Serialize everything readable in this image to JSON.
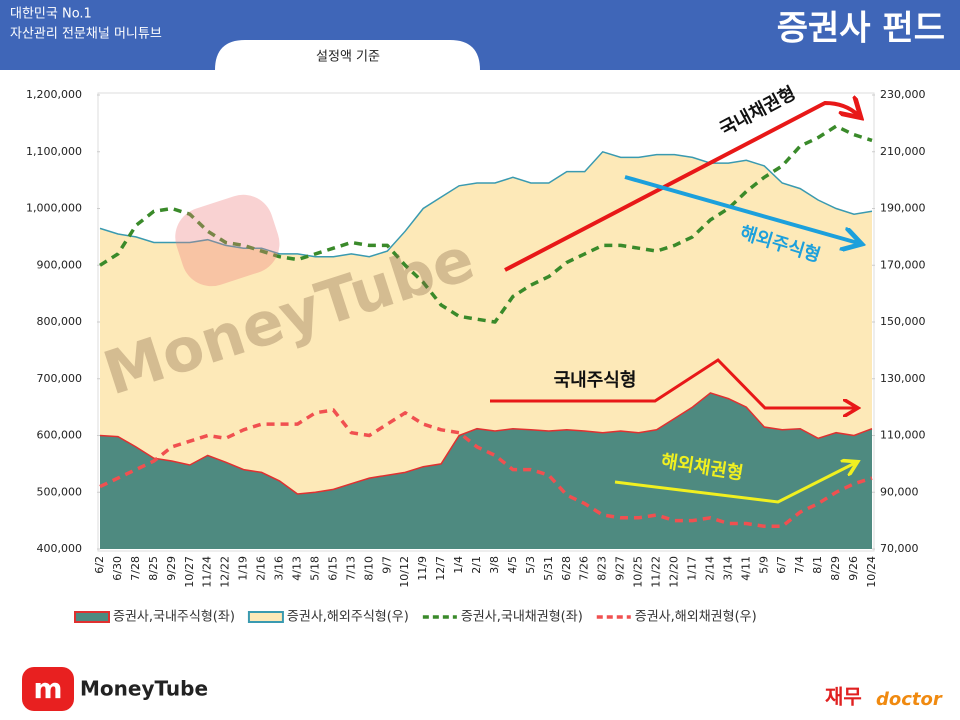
{
  "header": {
    "tagline1": "대한민국 No.1",
    "tagline2": "자산관리 전문채널 머니튜브",
    "title": "증권사 펀드",
    "subtitle": "설정액 기준"
  },
  "watermark": "MoneyTube",
  "logos": {
    "left": "MoneyTube",
    "right_1": "재무",
    "right_2": "doctor"
  },
  "chart_data": {
    "type": "combo",
    "categories": [
      "6/2",
      "6/30",
      "7/28",
      "8/25",
      "9/29",
      "10/27",
      "11/24",
      "12/22",
      "1/19",
      "2/16",
      "3/16",
      "4/13",
      "5/18",
      "6/15",
      "7/13",
      "8/10",
      "9/7",
      "10/12",
      "11/9",
      "12/7",
      "1/4",
      "2/1",
      "3/8",
      "4/5",
      "5/3",
      "5/31",
      "6/28",
      "7/26",
      "8/23",
      "9/27",
      "10/25",
      "11/22",
      "12/20",
      "1/17",
      "2/14",
      "3/14",
      "4/11",
      "5/9",
      "6/7",
      "7/4",
      "8/1",
      "8/29",
      "9/26",
      "10/24"
    ],
    "ylim": [
      400000,
      1200000
    ],
    "yticks": [
      {
        "value": 400000,
        "label": "400,000"
      },
      {
        "value": 500000,
        "label": "500,000"
      },
      {
        "value": 600000,
        "label": "600,000"
      },
      {
        "value": 700000,
        "label": "700,000"
      },
      {
        "value": 800000,
        "label": "800,000"
      },
      {
        "value": 900000,
        "label": "900,000"
      },
      {
        "value": 1000000,
        "label": "1,000,000"
      },
      {
        "value": 1100000,
        "label": "1,100,000"
      },
      {
        "value": 1200000,
        "label": "1,200,000"
      }
    ],
    "y2lim": [
      70000,
      230000
    ],
    "y2ticks": [
      {
        "value": 70000,
        "label": "70,000"
      },
      {
        "value": 90000,
        "label": "90,000"
      },
      {
        "value": 110000,
        "label": "110,000"
      },
      {
        "value": 130000,
        "label": "130,000"
      },
      {
        "value": 150000,
        "label": "150,000"
      },
      {
        "value": 170000,
        "label": "170,000"
      },
      {
        "value": 190000,
        "label": "190,000"
      },
      {
        "value": 210000,
        "label": "210,000"
      },
      {
        "value": 230000,
        "label": "230,000"
      }
    ],
    "grid": false,
    "series": [
      {
        "name": "증권사,국내주식형(좌)",
        "type": "area",
        "color": "#4e8a80",
        "edge": "#e03030",
        "values": [
          600000,
          598000,
          580000,
          560000,
          555000,
          548000,
          565000,
          553000,
          540000,
          535000,
          520000,
          497000,
          500000,
          505000,
          515000,
          525000,
          530000,
          535000,
          545000,
          550000,
          600000,
          612000,
          608000,
          612000,
          610000,
          608000,
          610000,
          608000,
          605000,
          608000,
          605000,
          610000,
          630000,
          650000,
          675000,
          665000,
          650000,
          615000,
          610000,
          612000,
          595000,
          605000,
          600000,
          612000
        ]
      },
      {
        "name": "증권사,해외주식형(우)",
        "type": "area",
        "axis": "y2",
        "color": "#fde9b8",
        "edge": "#3a9ab0",
        "values": [
          183000,
          181000,
          180000,
          178000,
          178000,
          178000,
          179000,
          177000,
          176000,
          176000,
          174000,
          174000,
          173000,
          173000,
          174000,
          173000,
          175000,
          182000,
          190000,
          194000,
          198000,
          199000,
          199000,
          201000,
          199000,
          199000,
          203000,
          203000,
          210000,
          208000,
          208000,
          209000,
          209000,
          208000,
          206000,
          206000,
          207000,
          205000,
          199000,
          197000,
          193000,
          190000,
          188000,
          189000
        ]
      },
      {
        "name": "증권사,국내채권형(좌)",
        "type": "line",
        "dashed": true,
        "color": "#3a8a2a",
        "values": [
          900000,
          920000,
          970000,
          995000,
          1000000,
          990000,
          960000,
          940000,
          935000,
          925000,
          915000,
          910000,
          920000,
          930000,
          940000,
          935000,
          935000,
          900000,
          870000,
          830000,
          810000,
          805000,
          800000,
          845000,
          865000,
          880000,
          905000,
          920000,
          935000,
          935000,
          930000,
          925000,
          935000,
          950000,
          980000,
          1000000,
          1030000,
          1055000,
          1075000,
          1110000,
          1125000,
          1145000,
          1130000,
          1120000
        ]
      },
      {
        "name": "증권사,해외채권형(우)",
        "type": "line",
        "axis": "y2",
        "dashed": true,
        "color": "#f05050",
        "values": [
          92000,
          95000,
          98000,
          101000,
          106000,
          108000,
          110000,
          109000,
          112000,
          114000,
          114000,
          114000,
          118000,
          119000,
          111000,
          110000,
          114000,
          118000,
          114000,
          112000,
          111000,
          106000,
          103000,
          98000,
          98000,
          96000,
          89000,
          86000,
          82000,
          81000,
          81000,
          82000,
          80000,
          80000,
          81000,
          79000,
          79000,
          78000,
          78000,
          83000,
          86000,
          90000,
          93000,
          95000
        ]
      }
    ],
    "annotations": [
      "국내채권형",
      "해외주식형",
      "국내주식형",
      "해외채권형"
    ]
  }
}
